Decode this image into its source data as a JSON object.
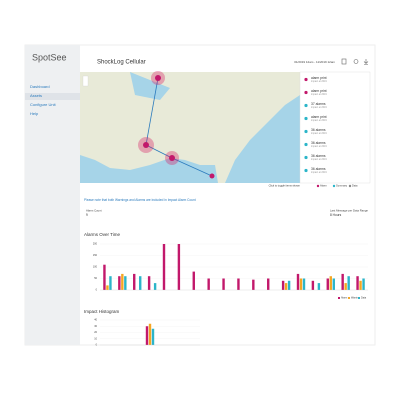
{
  "sidebar": {
    "logo": "SpotSee",
    "nav": [
      "Dashboard",
      "Assets",
      "Configure Unit",
      "Help"
    ]
  },
  "header": {
    "title": "ShockLog Cellular",
    "date_range": "01/2019 12am - 11/2019 12am"
  },
  "map": {
    "items": [
      {
        "title": "alarm print",
        "subtitle": "impact at 2019"
      },
      {
        "title": "alarm print",
        "subtitle": "impact at 2019"
      },
      {
        "title": "37 alarms",
        "subtitle": "impact at 2019"
      },
      {
        "title": "alarm print",
        "subtitle": "impact at 2019"
      },
      {
        "title": "36 alarms",
        "subtitle": "impact at 2019"
      },
      {
        "title": "36 alarms",
        "subtitle": "impact at 2019"
      },
      {
        "title": "36 alarms",
        "subtitle": "impact at 2019"
      },
      {
        "title": "36 alarms",
        "subtitle": "impact at 2019"
      }
    ],
    "footer": "Click to toggle items shown",
    "legend": [
      "Alarm",
      "Summary",
      "Data"
    ]
  },
  "notice": "Please note that both Warnings and Alarms are included in Impact Alarm Count",
  "stats": [
    {
      "label": "Alarm Count",
      "value": "9"
    },
    {
      "label": "Last Message per Data Range",
      "value": "8 Hours"
    }
  ],
  "chart_data": [
    {
      "type": "bar",
      "title": "Alarms Over Time",
      "categories": [
        null,
        null,
        null,
        null,
        null,
        null,
        null,
        null,
        null,
        null,
        null,
        null,
        null,
        null,
        null,
        null,
        null,
        null
      ],
      "series": [
        {
          "name": "Alarm",
          "color": "#c2186b",
          "values": [
            110,
            60,
            70,
            60,
            200,
            200,
            80,
            50,
            50,
            50,
            45,
            50,
            40,
            70,
            40,
            50,
            70,
            60
          ]
        },
        {
          "name": "Warning",
          "color": "#f5a623",
          "values": [
            20,
            70,
            0,
            0,
            0,
            0,
            0,
            0,
            0,
            0,
            0,
            0,
            30,
            50,
            0,
            60,
            30,
            40
          ]
        },
        {
          "name": "Data",
          "color": "#2bb5c9",
          "values": [
            60,
            60,
            60,
            30,
            0,
            0,
            0,
            0,
            0,
            0,
            0,
            0,
            40,
            50,
            30,
            50,
            60,
            50
          ]
        }
      ],
      "ylim": [
        0,
        200
      ],
      "yticks": [
        0,
        50,
        100,
        150,
        200
      ],
      "grid": true
    },
    {
      "type": "bar",
      "title": "Impact Histogram",
      "categories": [
        null
      ],
      "series": [
        {
          "name": "Alarm",
          "color": "#c2186b",
          "values": [
            30
          ]
        },
        {
          "name": "Warning",
          "color": "#f5a623",
          "values": [
            34
          ]
        },
        {
          "name": "Data",
          "color": "#2bb5c9",
          "values": [
            26
          ]
        }
      ],
      "ylim": [
        0,
        40
      ],
      "yticks": [
        0,
        10,
        20,
        30,
        40
      ],
      "grid": true
    }
  ]
}
